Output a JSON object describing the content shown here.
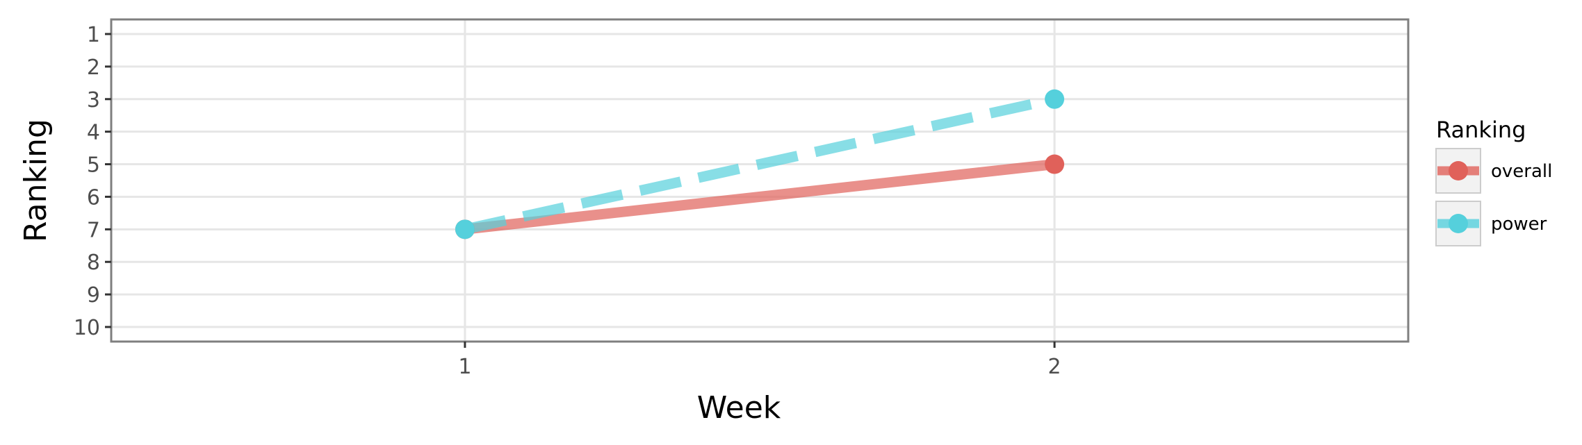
{
  "chart_data": {
    "type": "line",
    "x": [
      1,
      2
    ],
    "x_ticks": [
      "1",
      "2"
    ],
    "xlim": [
      0.4,
      2.6
    ],
    "y_ticks": [
      "1",
      "2",
      "3",
      "4",
      "5",
      "6",
      "7",
      "8",
      "9",
      "10"
    ],
    "ylim": [
      1,
      10
    ],
    "y_reversed": true,
    "xlabel": "Week",
    "ylabel": "Ranking",
    "grid": true,
    "legend": {
      "title": "Ranking",
      "position": "right"
    },
    "series": [
      {
        "name": "overall",
        "values": [
          7,
          5
        ],
        "color": "#e0615a",
        "line_style": "solid"
      },
      {
        "name": "power",
        "values": [
          7,
          3
        ],
        "color": "#55d0dc",
        "line_style": "dashed"
      }
    ]
  }
}
